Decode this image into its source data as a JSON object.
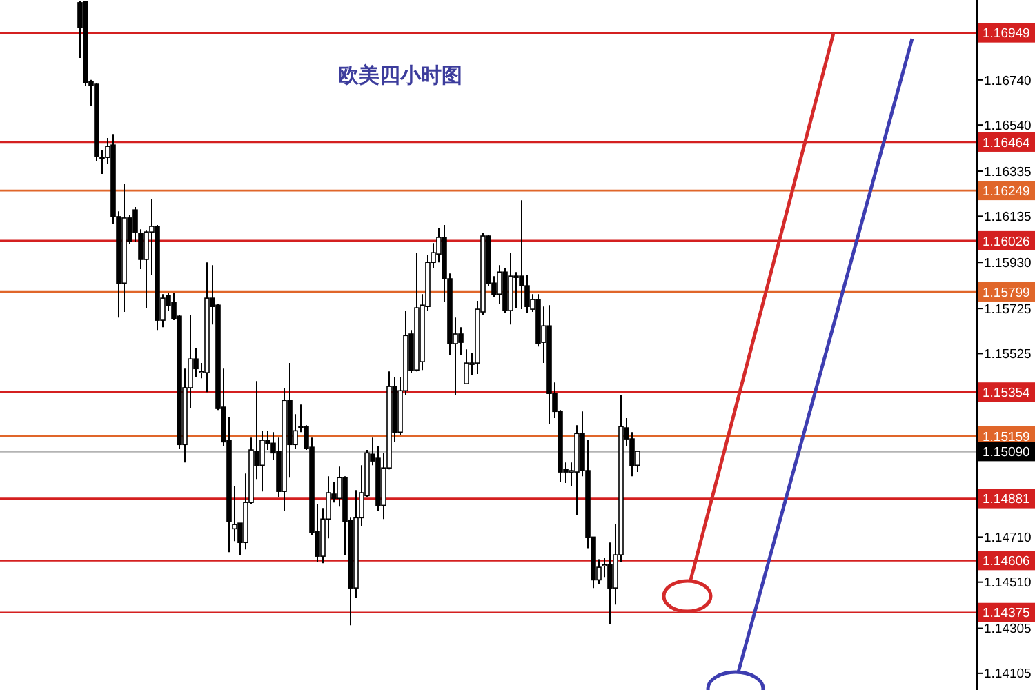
{
  "chart_data": {
    "type": "candlestick",
    "title": "欧美四小时图",
    "categories": [
      null,
      null,
      null,
      null,
      null,
      null,
      null,
      null,
      null,
      null,
      null,
      null,
      null,
      null,
      null,
      null,
      null,
      null,
      null,
      null,
      null,
      null,
      null,
      null,
      null,
      null,
      null,
      null,
      null,
      null,
      null,
      null,
      null,
      null,
      null,
      null,
      null,
      null,
      null,
      null,
      null,
      null,
      null,
      null,
      null,
      null,
      null,
      null,
      null,
      null,
      null,
      null,
      null,
      null,
      null,
      null,
      null,
      null,
      null,
      null,
      null,
      null,
      null,
      null,
      null,
      null,
      null,
      null,
      null,
      null,
      null,
      null,
      null,
      null,
      null,
      null,
      null,
      null,
      null,
      null,
      null,
      null,
      null,
      null,
      null,
      null,
      null,
      null,
      null,
      null,
      null,
      null,
      null,
      null,
      null,
      null,
      null,
      null,
      null,
      null,
      null,
      null,
      null,
      null,
      null,
      null,
      null,
      null,
      null,
      null,
      null,
      null,
      null,
      null,
      null,
      null,
      null,
      null,
      null,
      null,
      null,
      null,
      null,
      null,
      null,
      null,
      null,
      null,
      null,
      null,
      null,
      null,
      null,
      null,
      null,
      null,
      null,
      null,
      null,
      null,
      null,
      null,
      null,
      null,
      null,
      null,
      null,
      null,
      null,
      null,
      null,
      null,
      null,
      null,
      null,
      null,
      null,
      null,
      null,
      null,
      null,
      null,
      null,
      null,
      null,
      null,
      null,
      null,
      null,
      null,
      null,
      null,
      null,
      null,
      null,
      null,
      null
    ],
    "ohlc": [
      null,
      null,
      null,
      null,
      null,
      null,
      null,
      null,
      null,
      null,
      null,
      null,
      null,
      null,
      [
        1.17083,
        1.17089,
        1.16838,
        1.16972
      ],
      [
        1.17089,
        1.17092,
        1.16715,
        1.16727
      ],
      [
        1.16733,
        1.1674,
        1.16623,
        1.16715
      ],
      [
        1.16721,
        1.16727,
        1.16378,
        1.16402
      ],
      [
        1.16396,
        1.16427,
        1.16323,
        1.1639
      ],
      [
        1.16396,
        1.16482,
        1.16366,
        1.16445
      ],
      [
        1.16451,
        1.165,
        1.16102,
        1.16133
      ],
      [
        1.16133,
        1.16157,
        1.15685,
        1.15838
      ],
      [
        1.15838,
        1.1628,
        1.1571,
        1.16127
      ],
      [
        1.16127,
        1.16139,
        1.1601,
        1.16022
      ],
      [
        1.16163,
        1.16176,
        1.16022,
        1.16065
      ],
      [
        1.16059,
        1.16077,
        1.159,
        1.15943
      ],
      [
        1.15943,
        1.16071,
        1.15728,
        1.16065
      ],
      [
        1.16065,
        1.16212,
        1.15875,
        1.1609
      ],
      [
        1.1609,
        1.16096,
        1.1563,
        1.15673
      ],
      [
        1.15673,
        1.15789,
        1.15642,
        1.15771
      ],
      [
        1.15783,
        1.15795,
        1.15716,
        1.1574
      ],
      [
        1.15753,
        1.15795,
        1.15673,
        1.15679
      ],
      [
        1.15691,
        1.15697,
        1.15103,
        1.15121
      ],
      [
        1.15121,
        1.15458,
        1.15041,
        1.15373
      ],
      [
        1.15373,
        1.15697,
        1.15281,
        1.15501
      ],
      [
        1.15501,
        1.1555,
        1.15422,
        1.15458
      ],
      [
        1.1544,
        1.15483,
        1.15415,
        1.15446
      ],
      [
        1.1544,
        1.1593,
        1.15354,
        1.15771
      ],
      [
        1.15771,
        1.15918,
        1.15654,
        1.15734
      ],
      [
        1.1574,
        1.15746,
        1.15274,
        1.15281
      ],
      [
        1.15287,
        1.15458,
        1.15115,
        1.15133
      ],
      [
        1.1514,
        1.15244,
        1.14643,
        1.14778
      ],
      [
        1.14747,
        1.14937,
        1.14692,
        1.14766
      ],
      [
        1.14772,
        1.14772,
        1.14631,
        1.14686
      ],
      [
        1.14686,
        1.14992,
        1.14655,
        1.14864
      ],
      [
        1.14864,
        1.15152,
        1.14858,
        1.15097
      ],
      [
        1.15091,
        1.15403,
        1.14968,
        1.15029
      ],
      [
        1.15029,
        1.15182,
        1.14913,
        1.1514
      ],
      [
        1.1514,
        1.15182,
        1.15097,
        1.15127
      ],
      [
        1.15127,
        1.15176,
        1.15054,
        1.15084
      ],
      [
        1.15091,
        1.15152,
        1.14888,
        1.14913
      ],
      [
        1.14913,
        1.15373,
        1.14827,
        1.15317
      ],
      [
        1.15317,
        1.15483,
        1.14974,
        1.15121
      ],
      [
        1.15121,
        1.15256,
        1.15103,
        1.15182
      ],
      [
        1.15201,
        1.15299,
        1.15176,
        1.15195
      ],
      [
        1.15201,
        1.15207,
        1.15097,
        1.15103
      ],
      [
        1.15109,
        1.15152,
        1.14717,
        1.14729
      ],
      [
        1.14735,
        1.14858,
        1.146,
        1.14625
      ],
      [
        1.14625,
        1.14839,
        1.14594,
        1.1479
      ],
      [
        1.1479,
        1.1498,
        1.14704,
        1.14907
      ],
      [
        1.14901,
        1.14956,
        1.14864,
        1.14882
      ],
      [
        1.14882,
        1.15023,
        1.14845,
        1.14974
      ],
      [
        1.14974,
        1.1498,
        1.14631,
        1.14778
      ],
      [
        1.14784,
        1.14796,
        1.14318,
        1.14484
      ],
      [
        1.14484,
        1.14919,
        1.14441,
        1.14796
      ],
      [
        1.14796,
        1.15029,
        1.1476,
        1.14907
      ],
      [
        1.14894,
        1.15097,
        1.14888,
        1.15084
      ],
      [
        1.15078,
        1.15152,
        1.15029,
        1.15048
      ],
      [
        1.1506,
        1.15115,
        1.14827,
        1.14851
      ],
      [
        1.14851,
        1.15084,
        1.1479,
        1.15017
      ],
      [
        1.15017,
        1.15446,
        1.15011,
        1.15379
      ],
      [
        1.15379,
        1.15422,
        1.15133,
        1.15176
      ],
      [
        1.15176,
        1.15422,
        1.15164,
        1.1536
      ],
      [
        1.1536,
        1.15716,
        1.15342,
        1.15605
      ],
      [
        1.15612,
        1.1563,
        1.1544,
        1.15452
      ],
      [
        1.15452,
        1.15973,
        1.15446,
        1.15728
      ],
      [
        1.15489,
        1.15789,
        1.15452,
        1.1574
      ],
      [
        1.15734,
        1.15961,
        1.15716,
        1.1593
      ],
      [
        1.1593,
        1.16016,
        1.15906,
        1.15973
      ],
      [
        1.15967,
        1.16084,
        1.1593,
        1.16041
      ],
      [
        1.16041,
        1.16096,
        1.15753,
        1.15857
      ],
      [
        1.15857,
        1.15881,
        1.1552,
        1.15569
      ],
      [
        1.15569,
        1.15685,
        1.15342,
        1.15612
      ],
      [
        1.15612,
        1.15642,
        1.1552,
        1.15575
      ],
      [
        1.15391,
        1.15544,
        1.15391,
        1.15483
      ],
      [
        1.15477,
        1.15526,
        1.15428,
        1.15483
      ],
      [
        1.15483,
        1.15759,
        1.15434,
        1.15722
      ],
      [
        1.1571,
        1.16059,
        1.15697,
        1.16047
      ],
      [
        1.16047,
        1.16053,
        1.15826,
        1.15838
      ],
      [
        1.15838,
        1.15869,
        1.15777,
        1.15789
      ],
      [
        1.15789,
        1.15918,
        1.15746,
        1.15887
      ],
      [
        1.15887,
        1.15906,
        1.15704,
        1.15716
      ],
      [
        1.15716,
        1.15973,
        1.15654,
        1.15869
      ],
      [
        1.15869,
        1.15887,
        1.15728,
        1.15863
      ],
      [
        1.15869,
        1.16206,
        1.15722,
        1.15826
      ],
      [
        1.15826,
        1.15875,
        1.15704,
        1.15734
      ],
      [
        1.15722,
        1.15789,
        1.1571,
        1.15765
      ],
      [
        1.15765,
        1.15789,
        1.15556,
        1.15569
      ],
      [
        1.15575,
        1.15734,
        1.15483,
        1.15648
      ],
      [
        1.15648,
        1.1574,
        1.15213,
        1.15348
      ],
      [
        1.15348,
        1.15397,
        1.15238,
        1.15268
      ],
      [
        1.15268,
        1.15274,
        1.14956,
        1.14999
      ],
      [
        1.15011,
        1.15041,
        1.1495,
        1.14999
      ],
      [
        1.14999,
        1.15041,
        1.14937,
        1.15005
      ],
      [
        1.14999,
        1.15207,
        1.14809,
        1.1517
      ],
      [
        1.1517,
        1.15268,
        1.1498,
        1.15005
      ],
      [
        1.15005,
        1.1514,
        1.14661,
        1.1471
      ],
      [
        1.1471,
        1.1471,
        1.14484,
        1.1452
      ],
      [
        1.1452,
        1.14612,
        1.14502,
        1.14576
      ],
      [
        1.14582,
        1.14619,
        1.14533,
        1.14588
      ],
      [
        1.14588,
        1.14686,
        1.14324,
        1.14484
      ],
      [
        1.14484,
        1.14766,
        1.1441,
        1.14631
      ],
      [
        1.14631,
        1.15342,
        1.146,
        1.15201
      ],
      [
        1.15195,
        1.15238,
        1.15115,
        1.15146
      ],
      [
        1.15146,
        1.15176,
        1.1498,
        1.15029
      ],
      [
        1.15029,
        1.15091,
        1.14999,
        1.15091
      ],
      null,
      null,
      null,
      null,
      null,
      null,
      null,
      null,
      null,
      null,
      null,
      null,
      null,
      null,
      null,
      null,
      null,
      null,
      null,
      null,
      null,
      null,
      null,
      null,
      null,
      null,
      null,
      null,
      null,
      null,
      null,
      null,
      null,
      null,
      null,
      null,
      null,
      null,
      null,
      null,
      null,
      null,
      null,
      null,
      null,
      null,
      null,
      null,
      null,
      null,
      null,
      null,
      null,
      null,
      null,
      null,
      null,
      null,
      null,
      null,
      null
    ],
    "ylim": [
      1.14031,
      1.17095
    ],
    "yticks": [
      {
        "value": 1.1674,
        "label": "1.16740"
      },
      {
        "value": 1.1654,
        "label": "1.16540"
      },
      {
        "value": 1.16335,
        "label": "1.16335"
      },
      {
        "value": 1.16135,
        "label": "1.16135"
      },
      {
        "value": 1.1593,
        "label": "1.15930"
      },
      {
        "value": 1.15725,
        "label": "1.15725"
      },
      {
        "value": 1.15525,
        "label": "1.15525"
      },
      {
        "value": 1.1471,
        "label": "1.14710"
      },
      {
        "value": 1.1451,
        "label": "1.14510"
      },
      {
        "value": 1.14305,
        "label": "1.14305"
      },
      {
        "value": 1.14105,
        "label": "1.14105"
      }
    ],
    "tick_labels": "y",
    "ref_lines": [
      {
        "axis": "y",
        "value": 1.16949,
        "label": "1.16949",
        "color": "#d42020"
      },
      {
        "axis": "y",
        "value": 1.16464,
        "label": "1.16464",
        "color": "#d42020"
      },
      {
        "axis": "y",
        "value": 1.16249,
        "label": "1.16249",
        "color": "#e0662a"
      },
      {
        "axis": "y",
        "value": 1.16026,
        "label": "1.16026",
        "color": "#d42020"
      },
      {
        "axis": "y",
        "value": 1.15799,
        "label": "1.15799",
        "color": "#e0662a"
      },
      {
        "axis": "y",
        "value": 1.15354,
        "label": "1.15354",
        "color": "#d42020"
      },
      {
        "axis": "y",
        "value": 1.15159,
        "label": "1.15159",
        "color": "#e0662a"
      },
      {
        "axis": "y",
        "value": 1.1509,
        "label": "1.15090",
        "color": "#b4b4b4"
      },
      {
        "axis": "y",
        "value": 1.14881,
        "label": "1.14881",
        "color": "#d42020"
      },
      {
        "axis": "y",
        "value": 1.14606,
        "label": "1.14606",
        "color": "#d42020"
      },
      {
        "axis": "y",
        "value": 1.14375,
        "label": "1.14375",
        "color": "#d42020"
      }
    ]
  }
}
